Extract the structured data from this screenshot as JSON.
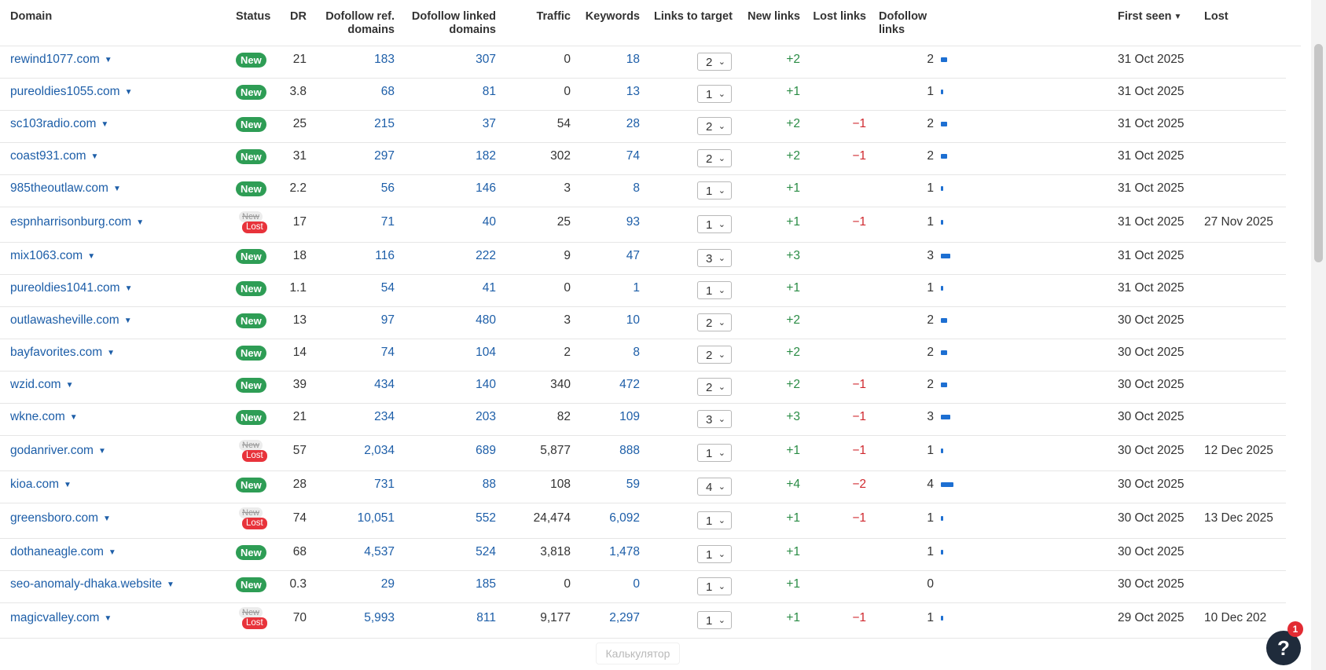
{
  "columns": {
    "domain": "Domain",
    "status": "Status",
    "dr": "DR",
    "dofollow_ref_1": "Dofollow ref.",
    "dofollow_ref_2": "domains",
    "dofollow_linked_1": "Dofollow linked",
    "dofollow_linked_2": "domains",
    "traffic": "Traffic",
    "keywords": "Keywords",
    "links_to_target": "Links to target",
    "new_links": "New links",
    "lost_links": "Lost links",
    "dofollow_links_1": "Dofollow",
    "dofollow_links_2": "links",
    "first_seen": "First seen",
    "lost": "Lost"
  },
  "status_labels": {
    "new": "New",
    "lost": "Lost"
  },
  "sort_icon": "caret-down-icon",
  "rows": [
    {
      "domain": "rewind1077.com",
      "status": "new",
      "dr": "21",
      "ref": "183",
      "linked": "307",
      "traffic": "0",
      "keywords": "18",
      "links": "2",
      "new_links": "+2",
      "lost_links": "",
      "dofollow": "2",
      "first_seen": "31 Oct 2025",
      "lost": ""
    },
    {
      "domain": "pureoldies1055.com",
      "status": "new",
      "dr": "3.8",
      "ref": "68",
      "linked": "81",
      "traffic": "0",
      "keywords": "13",
      "links": "1",
      "new_links": "+1",
      "lost_links": "",
      "dofollow": "1",
      "first_seen": "31 Oct 2025",
      "lost": ""
    },
    {
      "domain": "sc103radio.com",
      "status": "new",
      "dr": "25",
      "ref": "215",
      "linked": "37",
      "traffic": "54",
      "keywords": "28",
      "links": "2",
      "new_links": "+2",
      "lost_links": "−1",
      "dofollow": "2",
      "first_seen": "31 Oct 2025",
      "lost": ""
    },
    {
      "domain": "coast931.com",
      "status": "new",
      "dr": "31",
      "ref": "297",
      "linked": "182",
      "traffic": "302",
      "keywords": "74",
      "links": "2",
      "new_links": "+2",
      "lost_links": "−1",
      "dofollow": "2",
      "first_seen": "31 Oct 2025",
      "lost": ""
    },
    {
      "domain": "985theoutlaw.com",
      "status": "new",
      "dr": "2.2",
      "ref": "56",
      "linked": "146",
      "traffic": "3",
      "keywords": "8",
      "links": "1",
      "new_links": "+1",
      "lost_links": "",
      "dofollow": "1",
      "first_seen": "31 Oct 2025",
      "lost": ""
    },
    {
      "domain": "espnharrisonburg.com",
      "status": "lost",
      "dr": "17",
      "ref": "71",
      "linked": "40",
      "traffic": "25",
      "keywords": "93",
      "links": "1",
      "new_links": "+1",
      "lost_links": "−1",
      "dofollow": "1",
      "first_seen": "31 Oct 2025",
      "lost": "27 Nov 2025"
    },
    {
      "domain": "mix1063.com",
      "status": "new",
      "dr": "18",
      "ref": "116",
      "linked": "222",
      "traffic": "9",
      "keywords": "47",
      "links": "3",
      "new_links": "+3",
      "lost_links": "",
      "dofollow": "3",
      "first_seen": "31 Oct 2025",
      "lost": ""
    },
    {
      "domain": "pureoldies1041.com",
      "status": "new",
      "dr": "1.1",
      "ref": "54",
      "linked": "41",
      "traffic": "0",
      "keywords": "1",
      "links": "1",
      "new_links": "+1",
      "lost_links": "",
      "dofollow": "1",
      "first_seen": "31 Oct 2025",
      "lost": ""
    },
    {
      "domain": "outlawasheville.com",
      "status": "new",
      "dr": "13",
      "ref": "97",
      "linked": "480",
      "traffic": "3",
      "keywords": "10",
      "links": "2",
      "new_links": "+2",
      "lost_links": "",
      "dofollow": "2",
      "first_seen": "30 Oct 2025",
      "lost": ""
    },
    {
      "domain": "bayfavorites.com",
      "status": "new",
      "dr": "14",
      "ref": "74",
      "linked": "104",
      "traffic": "2",
      "keywords": "8",
      "links": "2",
      "new_links": "+2",
      "lost_links": "",
      "dofollow": "2",
      "first_seen": "30 Oct 2025",
      "lost": ""
    },
    {
      "domain": "wzid.com",
      "status": "new",
      "dr": "39",
      "ref": "434",
      "linked": "140",
      "traffic": "340",
      "keywords": "472",
      "links": "2",
      "new_links": "+2",
      "lost_links": "−1",
      "dofollow": "2",
      "first_seen": "30 Oct 2025",
      "lost": ""
    },
    {
      "domain": "wkne.com",
      "status": "new",
      "dr": "21",
      "ref": "234",
      "linked": "203",
      "traffic": "82",
      "keywords": "109",
      "links": "3",
      "new_links": "+3",
      "lost_links": "−1",
      "dofollow": "3",
      "first_seen": "30 Oct 2025",
      "lost": ""
    },
    {
      "domain": "godanriver.com",
      "status": "lost",
      "dr": "57",
      "ref": "2,034",
      "linked": "689",
      "traffic": "5,877",
      "keywords": "888",
      "links": "1",
      "new_links": "+1",
      "lost_links": "−1",
      "dofollow": "1",
      "first_seen": "30 Oct 2025",
      "lost": "12 Dec 2025"
    },
    {
      "domain": "kioa.com",
      "status": "new",
      "dr": "28",
      "ref": "731",
      "linked": "88",
      "traffic": "108",
      "keywords": "59",
      "links": "4",
      "new_links": "+4",
      "lost_links": "−2",
      "dofollow": "4",
      "first_seen": "30 Oct 2025",
      "lost": ""
    },
    {
      "domain": "greensboro.com",
      "status": "lost",
      "dr": "74",
      "ref": "10,051",
      "linked": "552",
      "traffic": "24,474",
      "keywords": "6,092",
      "links": "1",
      "new_links": "+1",
      "lost_links": "−1",
      "dofollow": "1",
      "first_seen": "30 Oct 2025",
      "lost": "13 Dec 2025"
    },
    {
      "domain": "dothaneagle.com",
      "status": "new",
      "dr": "68",
      "ref": "4,537",
      "linked": "524",
      "traffic": "3,818",
      "keywords": "1,478",
      "links": "1",
      "new_links": "+1",
      "lost_links": "",
      "dofollow": "1",
      "first_seen": "30 Oct 2025",
      "lost": ""
    },
    {
      "domain": "seo-anomaly-dhaka.website",
      "status": "new",
      "dr": "0.3",
      "ref": "29",
      "linked": "185",
      "traffic": "0",
      "keywords": "0",
      "links": "1",
      "new_links": "+1",
      "lost_links": "",
      "dofollow": "0",
      "first_seen": "30 Oct 2025",
      "lost": ""
    },
    {
      "domain": "magicvalley.com",
      "status": "lost",
      "dr": "70",
      "ref": "5,993",
      "linked": "811",
      "traffic": "9,177",
      "keywords": "2,297",
      "links": "1",
      "new_links": "+1",
      "lost_links": "−1",
      "dofollow": "1",
      "first_seen": "29 Oct 2025",
      "lost": "10 Dec 202"
    }
  ],
  "tooltip_text": "Калькулятор",
  "help": {
    "label": "?",
    "badge": "1"
  },
  "colors": {
    "link": "#1d5ea8",
    "new_badge": "#2e9d55",
    "lost_badge": "#e8333b",
    "positive": "#2a8c45",
    "negative": "#d0292f",
    "bar": "#1d6fd2"
  }
}
